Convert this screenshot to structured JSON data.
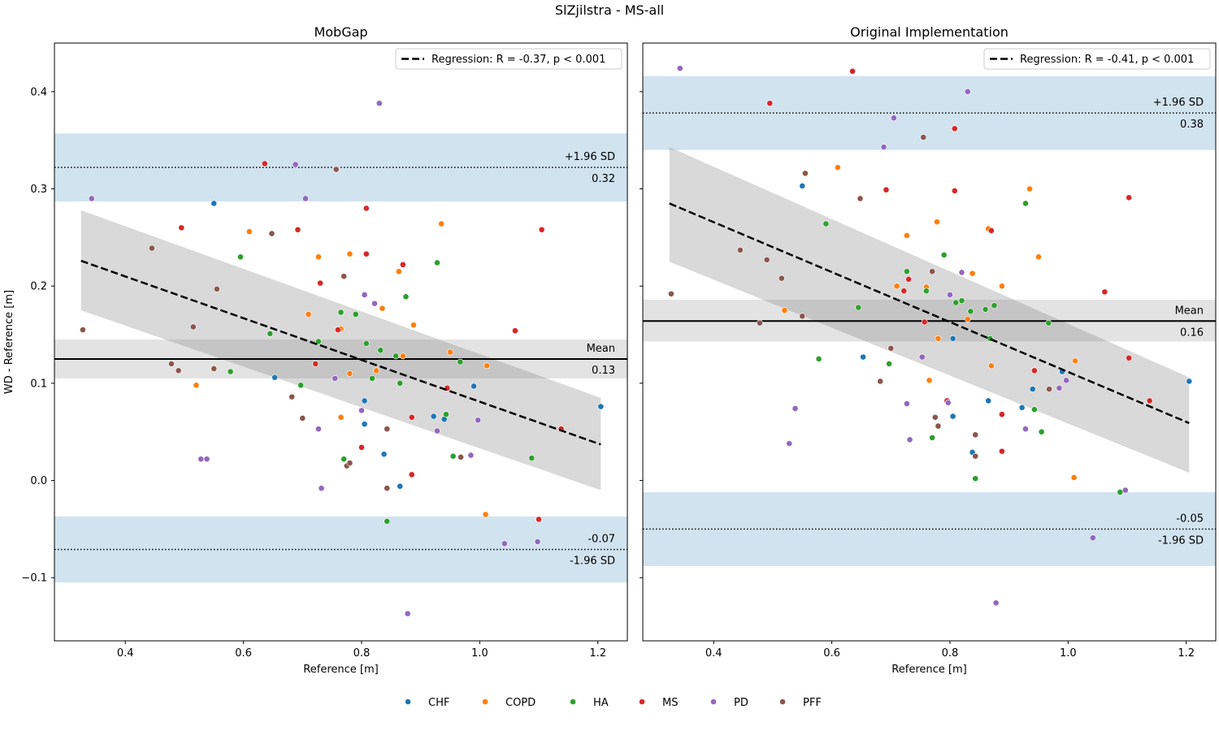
{
  "figure": {
    "title": "SlZjilstra - MS-all"
  },
  "legend": {
    "items": [
      {
        "label": "CHF",
        "color": "#1f77b4"
      },
      {
        "label": "COPD",
        "color": "#ff7f0e"
      },
      {
        "label": "HA",
        "color": "#2ca02c"
      },
      {
        "label": "MS",
        "color": "#d62728"
      },
      {
        "label": "PD",
        "color": "#9467bd"
      },
      {
        "label": "PFF",
        "color": "#8c564b"
      }
    ]
  },
  "chart_data": [
    {
      "type": "scatter",
      "title": "MobGap",
      "xlabel": "Reference [m]",
      "ylabel": "WD - Reference [m]",
      "xlim": [
        0.28,
        1.25
      ],
      "ylim": [
        -0.165,
        0.45
      ],
      "xticks": [
        0.4,
        0.6,
        0.8,
        1.0,
        1.2
      ],
      "yticks": [
        -0.1,
        0.0,
        0.1,
        0.2,
        0.3,
        0.4
      ],
      "show_ytick_labels": true,
      "mean": 0.125,
      "mean_ci": [
        0.105,
        0.145
      ],
      "mean_label": "Mean",
      "mean_value_label": "0.13",
      "upper_loa": 0.322,
      "upper_ci": [
        0.287,
        0.357
      ],
      "upper_label": "+1.96 SD",
      "upper_value_label": "0.32",
      "lower_loa": -0.071,
      "lower_ci": [
        -0.105,
        -0.037
      ],
      "lower_label": "-1.96 SD",
      "lower_value_label": "-0.07",
      "regression": {
        "x": [
          0.325,
          1.205
        ],
        "y": [
          0.226,
          0.037
        ],
        "band_upper": [
          0.278,
          0.085
        ],
        "band_lower": [
          0.175,
          -0.01
        ],
        "label": "Regression: R = -0.37, p < 0.001"
      },
      "series": [
        {
          "name": "CHF",
          "points": [
            [
              0.55,
              0.285
            ],
            [
              0.653,
              0.106
            ],
            [
              0.805,
              0.082
            ],
            [
              0.805,
              0.058
            ],
            [
              0.838,
              0.027
            ],
            [
              0.865,
              -0.006
            ],
            [
              0.922,
              0.066
            ],
            [
              0.94,
              0.063
            ],
            [
              0.99,
              0.097
            ],
            [
              1.205,
              0.076
            ]
          ]
        },
        {
          "name": "COPD",
          "points": [
            [
              0.52,
              0.098
            ],
            [
              0.61,
              0.256
            ],
            [
              0.71,
              0.171
            ],
            [
              0.727,
              0.23
            ],
            [
              0.765,
              0.156
            ],
            [
              0.765,
              0.065
            ],
            [
              0.78,
              0.233
            ],
            [
              0.78,
              0.11
            ],
            [
              0.825,
              0.113
            ],
            [
              0.835,
              0.177
            ],
            [
              0.863,
              0.215
            ],
            [
              0.87,
              0.128
            ],
            [
              0.888,
              0.16
            ],
            [
              0.935,
              0.264
            ],
            [
              0.95,
              0.132
            ],
            [
              1.01,
              -0.035
            ],
            [
              1.012,
              0.118
            ]
          ]
        },
        {
          "name": "HA",
          "points": [
            [
              0.595,
              0.23
            ],
            [
              0.578,
              0.112
            ],
            [
              0.645,
              0.151
            ],
            [
              0.697,
              0.098
            ],
            [
              0.727,
              0.143
            ],
            [
              0.765,
              0.173
            ],
            [
              0.77,
              0.022
            ],
            [
              0.79,
              0.171
            ],
            [
              0.808,
              0.141
            ],
            [
              0.818,
              0.105
            ],
            [
              0.832,
              0.134
            ],
            [
              0.843,
              -0.042
            ],
            [
              0.858,
              0.128
            ],
            [
              0.865,
              0.1
            ],
            [
              0.875,
              0.189
            ],
            [
              0.928,
              0.224
            ],
            [
              0.943,
              0.068
            ],
            [
              0.955,
              0.025
            ],
            [
              0.967,
              0.122
            ],
            [
              1.088,
              0.023
            ]
          ]
        },
        {
          "name": "MS",
          "points": [
            [
              0.495,
              0.26
            ],
            [
              0.636,
              0.326
            ],
            [
              0.692,
              0.258
            ],
            [
              0.722,
              0.12
            ],
            [
              0.73,
              0.203
            ],
            [
              0.76,
              0.155
            ],
            [
              0.8,
              0.034
            ],
            [
              0.808,
              0.233
            ],
            [
              0.808,
              0.28
            ],
            [
              0.87,
              0.222
            ],
            [
              0.885,
              0.065
            ],
            [
              0.885,
              0.006
            ],
            [
              0.945,
              0.095
            ],
            [
              1.06,
              0.154
            ],
            [
              1.1,
              -0.04
            ],
            [
              1.105,
              0.258
            ],
            [
              1.138,
              0.053
            ]
          ]
        },
        {
          "name": "PD",
          "points": [
            [
              0.343,
              0.29
            ],
            [
              0.528,
              0.022
            ],
            [
              0.538,
              0.022
            ],
            [
              0.688,
              0.325
            ],
            [
              0.705,
              0.29
            ],
            [
              0.727,
              0.053
            ],
            [
              0.732,
              -0.008
            ],
            [
              0.755,
              0.105
            ],
            [
              0.8,
              0.072
            ],
            [
              0.805,
              0.191
            ],
            [
              0.822,
              0.182
            ],
            [
              0.83,
              0.388
            ],
            [
              0.878,
              -0.137
            ],
            [
              0.928,
              0.051
            ],
            [
              0.985,
              0.026
            ],
            [
              0.997,
              0.062
            ],
            [
              1.042,
              -0.065
            ],
            [
              1.098,
              -0.063
            ]
          ]
        },
        {
          "name": "PFF",
          "points": [
            [
              0.328,
              0.155
            ],
            [
              0.445,
              0.239
            ],
            [
              0.478,
              0.12
            ],
            [
              0.49,
              0.113
            ],
            [
              0.515,
              0.158
            ],
            [
              0.55,
              0.115
            ],
            [
              0.555,
              0.197
            ],
            [
              0.648,
              0.254
            ],
            [
              0.682,
              0.086
            ],
            [
              0.7,
              0.064
            ],
            [
              0.757,
              0.32
            ],
            [
              0.77,
              0.21
            ],
            [
              0.775,
              0.015
            ],
            [
              0.78,
              0.018
            ],
            [
              0.843,
              0.053
            ],
            [
              0.843,
              -0.008
            ],
            [
              0.968,
              0.024
            ]
          ]
        }
      ]
    },
    {
      "type": "scatter",
      "title": "Original Implementation",
      "xlabel": "Reference [m]",
      "ylabel": "",
      "xlim": [
        0.28,
        1.25
      ],
      "ylim": [
        -0.165,
        0.45
      ],
      "xticks": [
        0.4,
        0.6,
        0.8,
        1.0,
        1.2
      ],
      "yticks": [
        -0.1,
        0.0,
        0.1,
        0.2,
        0.3,
        0.4
      ],
      "show_ytick_labels": false,
      "mean": 0.164,
      "mean_ci": [
        0.143,
        0.186
      ],
      "mean_label": "Mean",
      "mean_value_label": "0.16",
      "upper_loa": 0.378,
      "upper_ci": [
        0.34,
        0.416
      ],
      "upper_label": "+1.96 SD",
      "upper_value_label": "0.38",
      "lower_loa": -0.05,
      "lower_ci": [
        -0.088,
        -0.012
      ],
      "lower_label": "-1.96 SD",
      "lower_value_label": "-0.05",
      "regression": {
        "x": [
          0.325,
          1.205
        ],
        "y": [
          0.285,
          0.059
        ],
        "band_upper": [
          0.343,
          0.106
        ],
        "band_lower": [
          0.225,
          0.008
        ],
        "label": "Regression: R = -0.41, p < 0.001"
      },
      "series": [
        {
          "name": "CHF",
          "points": [
            [
              0.55,
              0.303
            ],
            [
              0.653,
              0.127
            ],
            [
              0.805,
              0.146
            ],
            [
              0.805,
              0.066
            ],
            [
              0.838,
              0.029
            ],
            [
              0.865,
              0.082
            ],
            [
              0.922,
              0.075
            ],
            [
              0.94,
              0.094
            ],
            [
              0.99,
              0.112
            ],
            [
              1.205,
              0.102
            ]
          ]
        },
        {
          "name": "COPD",
          "points": [
            [
              0.52,
              0.175
            ],
            [
              0.61,
              0.322
            ],
            [
              0.71,
              0.2
            ],
            [
              0.727,
              0.252
            ],
            [
              0.76,
              0.199
            ],
            [
              0.765,
              0.103
            ],
            [
              0.78,
              0.146
            ],
            [
              0.778,
              0.266
            ],
            [
              0.83,
              0.166
            ],
            [
              0.838,
              0.213
            ],
            [
              0.865,
              0.259
            ],
            [
              0.87,
              0.118
            ],
            [
              0.888,
              0.2
            ],
            [
              0.935,
              0.3
            ],
            [
              0.95,
              0.23
            ],
            [
              1.01,
              0.003
            ],
            [
              1.012,
              0.123
            ]
          ]
        },
        {
          "name": "HA",
          "points": [
            [
              0.59,
              0.264
            ],
            [
              0.578,
              0.125
            ],
            [
              0.645,
              0.178
            ],
            [
              0.697,
              0.12
            ],
            [
              0.727,
              0.215
            ],
            [
              0.76,
              0.195
            ],
            [
              0.77,
              0.044
            ],
            [
              0.79,
              0.232
            ],
            [
              0.81,
              0.183
            ],
            [
              0.82,
              0.185
            ],
            [
              0.835,
              0.174
            ],
            [
              0.843,
              0.002
            ],
            [
              0.86,
              0.176
            ],
            [
              0.868,
              0.146
            ],
            [
              0.875,
              0.18
            ],
            [
              0.928,
              0.285
            ],
            [
              0.943,
              0.073
            ],
            [
              0.955,
              0.05
            ],
            [
              0.967,
              0.162
            ],
            [
              1.088,
              -0.012
            ]
          ]
        },
        {
          "name": "MS",
          "points": [
            [
              0.495,
              0.388
            ],
            [
              0.635,
              0.421
            ],
            [
              0.692,
              0.299
            ],
            [
              0.722,
              0.195
            ],
            [
              0.73,
              0.207
            ],
            [
              0.757,
              0.163
            ],
            [
              0.795,
              0.082
            ],
            [
              0.808,
              0.298
            ],
            [
              0.808,
              0.362
            ],
            [
              0.87,
              0.257
            ],
            [
              0.888,
              0.068
            ],
            [
              0.888,
              0.03
            ],
            [
              0.943,
              0.113
            ],
            [
              1.062,
              0.194
            ],
            [
              1.103,
              0.126
            ],
            [
              1.103,
              0.291
            ],
            [
              1.138,
              0.082
            ]
          ]
        },
        {
          "name": "PD",
          "points": [
            [
              0.343,
              0.424
            ],
            [
              0.528,
              0.038
            ],
            [
              0.538,
              0.074
            ],
            [
              0.688,
              0.343
            ],
            [
              0.705,
              0.373
            ],
            [
              0.727,
              0.079
            ],
            [
              0.732,
              0.042
            ],
            [
              0.753,
              0.127
            ],
            [
              0.797,
              0.08
            ],
            [
              0.8,
              0.191
            ],
            [
              0.82,
              0.214
            ],
            [
              0.83,
              0.4
            ],
            [
              0.878,
              -0.126
            ],
            [
              0.928,
              0.053
            ],
            [
              0.985,
              0.095
            ],
            [
              0.997,
              0.103
            ],
            [
              1.042,
              -0.059
            ],
            [
              1.097,
              -0.01
            ]
          ]
        },
        {
          "name": "PFF",
          "points": [
            [
              0.328,
              0.192
            ],
            [
              0.445,
              0.237
            ],
            [
              0.478,
              0.162
            ],
            [
              0.49,
              0.227
            ],
            [
              0.515,
              0.208
            ],
            [
              0.55,
              0.169
            ],
            [
              0.555,
              0.316
            ],
            [
              0.648,
              0.29
            ],
            [
              0.682,
              0.102
            ],
            [
              0.7,
              0.136
            ],
            [
              0.755,
              0.353
            ],
            [
              0.77,
              0.215
            ],
            [
              0.775,
              0.065
            ],
            [
              0.78,
              0.056
            ],
            [
              0.843,
              0.047
            ],
            [
              0.843,
              0.025
            ],
            [
              0.968,
              0.094
            ]
          ]
        }
      ]
    }
  ]
}
